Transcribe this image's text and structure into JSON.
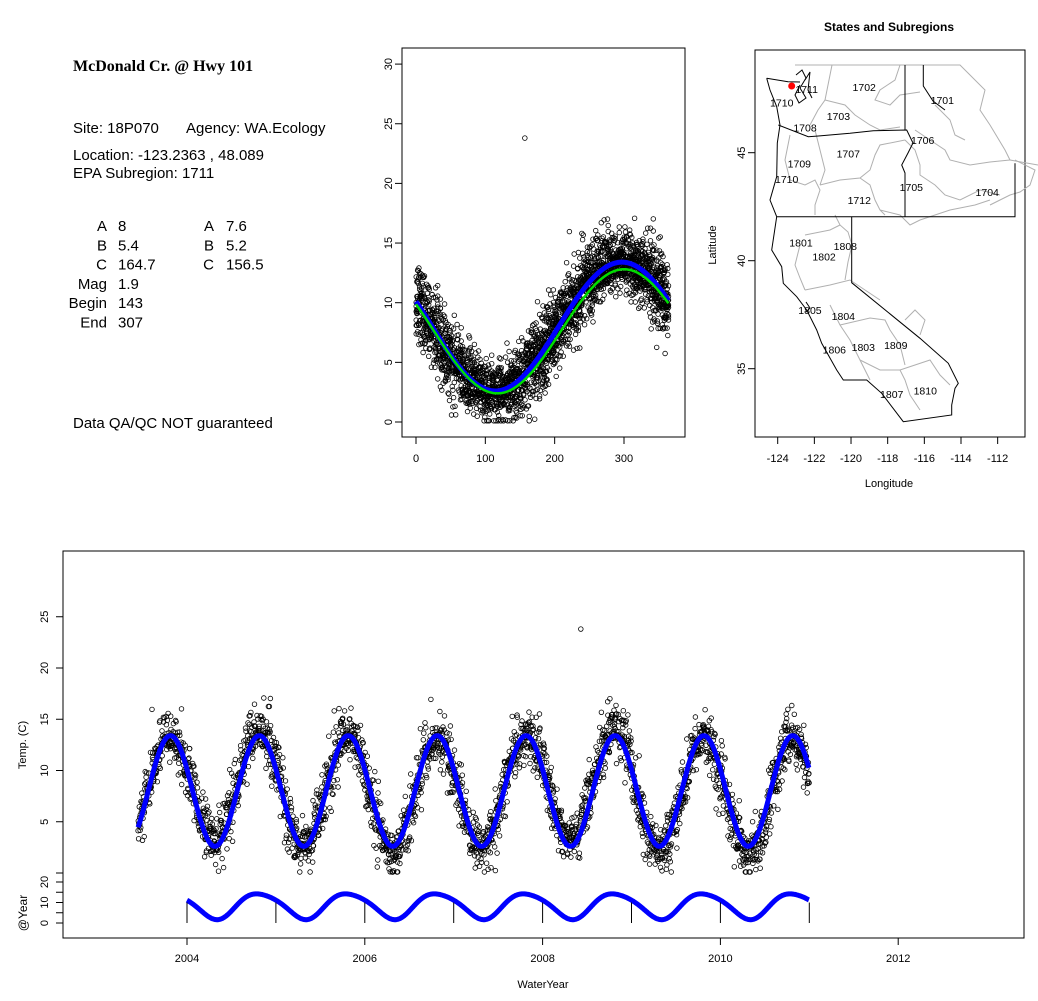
{
  "info_panel": {
    "title": "McDonald Cr. @ Hwy 101",
    "site": "Site: 18P070",
    "agency": "Agency: WA.Ecology",
    "location": "Location: -123.2363 , 48.089",
    "subregion": "EPA Subregion: 1711",
    "params_left": [
      {
        "name": "A",
        "value": "8"
      },
      {
        "name": "B",
        "value": "5.4"
      },
      {
        "name": "C",
        "value": "164.7"
      },
      {
        "name": "Mag",
        "value": "1.9"
      },
      {
        "name": "Begin",
        "value": "143"
      },
      {
        "name": "End",
        "value": "307"
      }
    ],
    "params_right": [
      {
        "name": "A",
        "value": "7.6"
      },
      {
        "name": "B",
        "value": "5.2"
      },
      {
        "name": "C",
        "value": "156.5"
      }
    ],
    "disclaimer": "Data QA/QC NOT guaranteed",
    "disclaimer_color": "#b22222"
  },
  "chart_data": [
    {
      "id": "day-of-year-scatter",
      "type": "scatter",
      "xlim": [
        0,
        365
      ],
      "ylim": [
        0,
        30
      ],
      "xticks": [
        "0",
        "100",
        "200",
        "300"
      ],
      "yticks": [
        "0",
        "5",
        "10",
        "15",
        "20",
        "25",
        "30"
      ],
      "fits": [
        {
          "name": "fit-blue",
          "color": "#0000ff",
          "mean": 8,
          "amplitude": 5.4,
          "peak_day": 297
        },
        {
          "name": "fit-green",
          "color": "#00dd00",
          "mean": 7.6,
          "amplitude": 5.2,
          "peak_day": 300
        }
      ],
      "outlier": {
        "day": 157,
        "temp": 23.8
      },
      "noise_sd": 1.4
    },
    {
      "id": "subregion-map",
      "type": "scatter",
      "title": "States and Subregions",
      "xlabel": "Longitude",
      "ylabel": "Latitude",
      "xticks": [
        "-124",
        "-122",
        "-120",
        "-118",
        "-116",
        "-114",
        "-112"
      ],
      "yticks": [
        "35",
        "40",
        "45"
      ],
      "site": {
        "lon": -123.2363,
        "lat": 48.089,
        "color": "#ff0000"
      },
      "subregions": [
        {
          "label": "1701",
          "lon": -115.02,
          "lat": 47.44
        },
        {
          "label": "1702",
          "lon": -119.28,
          "lat": 48.04
        },
        {
          "label": "1711",
          "lon": -122.42,
          "lat": 47.96
        },
        {
          "label": "1710",
          "lon": -123.78,
          "lat": 47.33
        },
        {
          "label": "1703",
          "lon": -120.69,
          "lat": 46.7
        },
        {
          "label": "1708",
          "lon": -122.51,
          "lat": 46.16
        },
        {
          "label": "1706",
          "lon": -116.09,
          "lat": 45.59
        },
        {
          "label": "1707",
          "lon": -120.15,
          "lat": 44.97
        },
        {
          "label": "1709",
          "lon": -122.82,
          "lat": 44.51
        },
        {
          "label": "1710",
          "lon": -123.51,
          "lat": 43.78
        },
        {
          "label": "1705",
          "lon": -116.71,
          "lat": 43.41
        },
        {
          "label": "1704",
          "lon": -112.57,
          "lat": 43.18
        },
        {
          "label": "1712",
          "lon": -119.55,
          "lat": 42.8
        },
        {
          "label": "1801",
          "lon": -122.73,
          "lat": 40.85
        },
        {
          "label": "1808",
          "lon": -120.31,
          "lat": 40.68
        },
        {
          "label": "1802",
          "lon": -121.47,
          "lat": 40.2
        },
        {
          "label": "1805",
          "lon": -122.24,
          "lat": 37.72
        },
        {
          "label": "1804",
          "lon": -120.42,
          "lat": 37.45
        },
        {
          "label": "1806",
          "lon": -120.91,
          "lat": 35.9
        },
        {
          "label": "1803",
          "lon": -119.33,
          "lat": 36.0
        },
        {
          "label": "1809",
          "lon": -117.56,
          "lat": 36.1
        },
        {
          "label": "1807",
          "lon": -117.78,
          "lat": 33.84
        },
        {
          "label": "1810",
          "lon": -115.95,
          "lat": 33.98
        }
      ]
    },
    {
      "id": "time-series",
      "type": "scatter",
      "xlabel": "WaterYear",
      "ylabel": "Temp. (C)",
      "ylabel2": "@Year",
      "xlim": [
        2002.6,
        2013.4
      ],
      "x_start": 2003.45,
      "x_end": 2011.0,
      "xticks": [
        "2004",
        "2006",
        "2008",
        "2010",
        "2012"
      ],
      "yticks": [
        "5",
        "10",
        "15",
        "20",
        "25"
      ],
      "yticks2": [
        "0",
        "10",
        "20"
      ],
      "fit_color": "#0000ff",
      "outlier": {
        "x": 2008.43,
        "temp": 23.8
      },
      "year_strip": {
        "mean": 8.5,
        "amplitude": 6.2,
        "peak_frac": 0.82,
        "years": [
          2004,
          2005,
          2006,
          2007,
          2008,
          2009,
          2010,
          2011
        ]
      }
    }
  ]
}
